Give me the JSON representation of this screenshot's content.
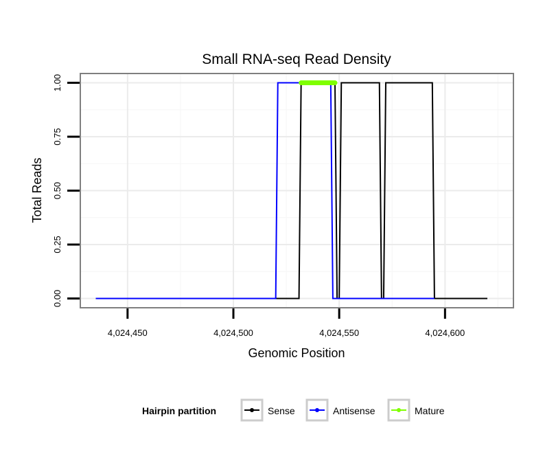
{
  "chart_data": {
    "type": "line",
    "title": "Small RNA-seq Read Density",
    "xlabel": "Genomic Position",
    "ylabel": "Total Reads",
    "xlim": [
      4024428,
      4024632
    ],
    "ylim": [
      -0.04,
      1.04
    ],
    "x_ticks": [
      4024450,
      4024500,
      4024550,
      4024600
    ],
    "x_tick_labels": [
      "4,024,450",
      "4,024,500",
      "4,024,550",
      "4,024,600"
    ],
    "y_ticks": [
      0,
      0.25,
      0.5,
      0.75,
      1.0
    ],
    "y_tick_labels": [
      "0.00",
      "0.25",
      "0.50",
      "0.75",
      "1.00"
    ],
    "grid": true,
    "legend": {
      "title": "Hairpin partition",
      "position": "bottom",
      "entries": [
        "Sense",
        "Antisense",
        "Mature"
      ]
    },
    "series": [
      {
        "name": "Sense",
        "color": "#000000",
        "points": [
          [
            4024435,
            0
          ],
          [
            4024531,
            0
          ],
          [
            4024532,
            1
          ],
          [
            4024548,
            1
          ],
          [
            4024549,
            0
          ],
          [
            4024550,
            0
          ],
          [
            4024551,
            1
          ],
          [
            4024569,
            1
          ],
          [
            4024570,
            0
          ],
          [
            4024571,
            0
          ],
          [
            4024572,
            1
          ],
          [
            4024594,
            1
          ],
          [
            4024595,
            0
          ],
          [
            4024620,
            0
          ]
        ]
      },
      {
        "name": "Antisense",
        "color": "#0000ff",
        "points": [
          [
            4024435,
            0
          ],
          [
            4024520,
            0
          ],
          [
            4024521,
            1
          ],
          [
            4024546,
            1
          ],
          [
            4024547,
            0
          ],
          [
            4024595,
            0
          ]
        ]
      },
      {
        "name": "Mature",
        "color": "#7fff00",
        "points": [
          [
            4024532,
            1
          ],
          [
            4024548,
            1
          ]
        ]
      }
    ]
  }
}
